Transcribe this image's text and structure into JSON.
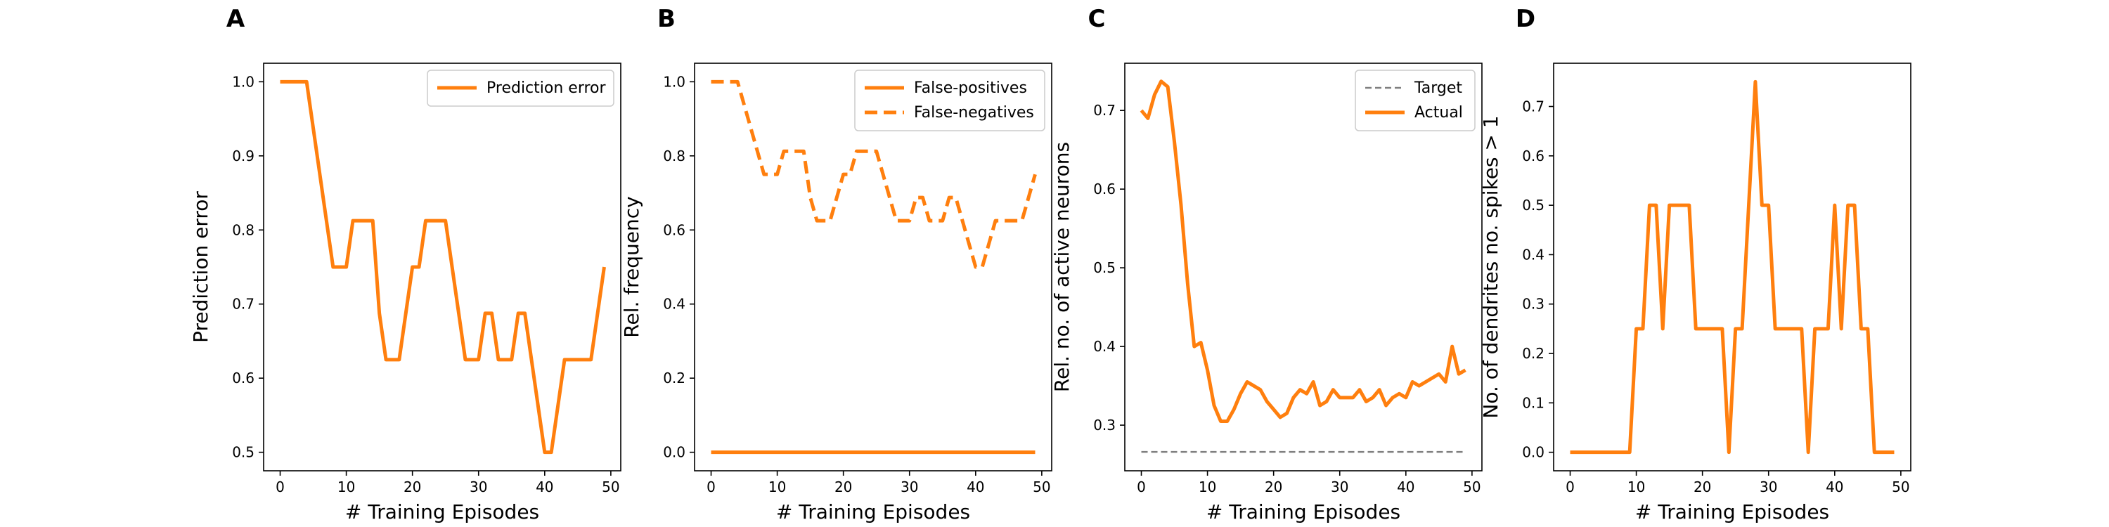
{
  "colors": {
    "series": "#ff7f0e",
    "target": "#7f7f7f",
    "axis": "#000000"
  },
  "chart_data": [
    {
      "type": "line",
      "panel_label": "A",
      "xlabel": "# Training Episodes",
      "ylabel": "Prediction error",
      "xlim": [
        -2.5,
        51.5
      ],
      "ylim": [
        0.475,
        1.025
      ],
      "xticks": [
        0,
        10,
        20,
        30,
        40,
        50
      ],
      "xtick_labels": [
        "0",
        "10",
        "20",
        "30",
        "40",
        "50"
      ],
      "yticks": [
        0.5,
        0.6,
        0.7,
        0.8,
        0.9,
        1.0
      ],
      "ytick_labels": [
        "0.5",
        "0.6",
        "0.7",
        "0.8",
        "0.9",
        "1.0"
      ],
      "grid": false,
      "legend_position": "top-right",
      "series": [
        {
          "name": "Prediction error",
          "style": "solid",
          "color": "#ff7f0e",
          "x": [
            0,
            1,
            2,
            3,
            4,
            5,
            6,
            7,
            8,
            9,
            10,
            11,
            12,
            13,
            14,
            15,
            16,
            17,
            18,
            19,
            20,
            21,
            22,
            23,
            24,
            25,
            26,
            27,
            28,
            29,
            30,
            31,
            32,
            33,
            34,
            35,
            36,
            37,
            38,
            39,
            40,
            41,
            42,
            43,
            44,
            45,
            46,
            47,
            48,
            49
          ],
          "y": [
            1.0,
            1.0,
            1.0,
            1.0,
            1.0,
            0.9375,
            0.875,
            0.8125,
            0.75,
            0.75,
            0.75,
            0.8125,
            0.8125,
            0.8125,
            0.8125,
            0.6875,
            0.625,
            0.625,
            0.625,
            0.6875,
            0.75,
            0.75,
            0.8125,
            0.8125,
            0.8125,
            0.8125,
            0.75,
            0.6875,
            0.625,
            0.625,
            0.625,
            0.6875,
            0.6875,
            0.625,
            0.625,
            0.625,
            0.6875,
            0.6875,
            0.625,
            0.5625,
            0.5,
            0.5,
            0.5625,
            0.625,
            0.625,
            0.625,
            0.625,
            0.625,
            0.6875,
            0.75
          ]
        }
      ]
    },
    {
      "type": "line",
      "panel_label": "B",
      "xlabel": "# Training Episodes",
      "ylabel": "Rel. frequency",
      "xlim": [
        -2.5,
        51.5
      ],
      "ylim": [
        -0.05,
        1.05
      ],
      "xticks": [
        0,
        10,
        20,
        30,
        40,
        50
      ],
      "xtick_labels": [
        "0",
        "10",
        "20",
        "30",
        "40",
        "50"
      ],
      "yticks": [
        0.0,
        0.2,
        0.4,
        0.6,
        0.8,
        1.0
      ],
      "ytick_labels": [
        "0.0",
        "0.2",
        "0.4",
        "0.6",
        "0.8",
        "1.0"
      ],
      "grid": false,
      "legend_position": "top-right",
      "series": [
        {
          "name": "False-positives",
          "style": "solid",
          "color": "#ff7f0e",
          "x": [
            0,
            1,
            2,
            3,
            4,
            5,
            6,
            7,
            8,
            9,
            10,
            11,
            12,
            13,
            14,
            15,
            16,
            17,
            18,
            19,
            20,
            21,
            22,
            23,
            24,
            25,
            26,
            27,
            28,
            29,
            30,
            31,
            32,
            33,
            34,
            35,
            36,
            37,
            38,
            39,
            40,
            41,
            42,
            43,
            44,
            45,
            46,
            47,
            48,
            49
          ],
          "y": [
            0,
            0,
            0,
            0,
            0,
            0,
            0,
            0,
            0,
            0,
            0,
            0,
            0,
            0,
            0,
            0,
            0,
            0,
            0,
            0,
            0,
            0,
            0,
            0,
            0,
            0,
            0,
            0,
            0,
            0,
            0,
            0,
            0,
            0,
            0,
            0,
            0,
            0,
            0,
            0,
            0,
            0,
            0,
            0,
            0,
            0,
            0,
            0,
            0,
            0
          ]
        },
        {
          "name": "False-negatives",
          "style": "dashed",
          "color": "#ff7f0e",
          "x": [
            0,
            1,
            2,
            3,
            4,
            5,
            6,
            7,
            8,
            9,
            10,
            11,
            12,
            13,
            14,
            15,
            16,
            17,
            18,
            19,
            20,
            21,
            22,
            23,
            24,
            25,
            26,
            27,
            28,
            29,
            30,
            31,
            32,
            33,
            34,
            35,
            36,
            37,
            38,
            39,
            40,
            41,
            42,
            43,
            44,
            45,
            46,
            47,
            48,
            49
          ],
          "y": [
            1.0,
            1.0,
            1.0,
            1.0,
            1.0,
            0.9375,
            0.875,
            0.8125,
            0.75,
            0.75,
            0.75,
            0.8125,
            0.8125,
            0.8125,
            0.8125,
            0.6875,
            0.625,
            0.625,
            0.625,
            0.6875,
            0.75,
            0.75,
            0.8125,
            0.8125,
            0.8125,
            0.8125,
            0.75,
            0.6875,
            0.625,
            0.625,
            0.625,
            0.6875,
            0.6875,
            0.625,
            0.625,
            0.625,
            0.6875,
            0.6875,
            0.625,
            0.5625,
            0.5,
            0.5,
            0.5625,
            0.625,
            0.625,
            0.625,
            0.625,
            0.625,
            0.6875,
            0.75
          ]
        }
      ]
    },
    {
      "type": "line",
      "panel_label": "C",
      "xlabel": "# Training Episodes",
      "ylabel": "Rel. no. of active neurons",
      "xlim": [
        -2.5,
        51.5
      ],
      "ylim": [
        0.242,
        0.76
      ],
      "xticks": [
        0,
        10,
        20,
        30,
        40,
        50
      ],
      "xtick_labels": [
        "0",
        "10",
        "20",
        "30",
        "40",
        "50"
      ],
      "yticks": [
        0.3,
        0.4,
        0.5,
        0.6,
        0.7
      ],
      "ytick_labels": [
        "0.3",
        "0.4",
        "0.5",
        "0.6",
        "0.7"
      ],
      "grid": false,
      "legend_position": "top-right",
      "series": [
        {
          "name": "Target",
          "style": "dashed",
          "color": "#7f7f7f",
          "x": [
            0,
            49
          ],
          "y": [
            0.266,
            0.266
          ]
        },
        {
          "name": "Actual",
          "style": "solid",
          "color": "#ff7f0e",
          "x": [
            0,
            1,
            2,
            3,
            4,
            5,
            6,
            7,
            8,
            9,
            10,
            11,
            12,
            13,
            14,
            15,
            16,
            17,
            18,
            19,
            20,
            21,
            22,
            23,
            24,
            25,
            26,
            27,
            28,
            29,
            30,
            31,
            32,
            33,
            34,
            35,
            36,
            37,
            38,
            39,
            40,
            41,
            42,
            43,
            44,
            45,
            46,
            47,
            48,
            49
          ],
          "y": [
            0.7,
            0.69,
            0.72,
            0.737,
            0.73,
            0.66,
            0.58,
            0.48,
            0.4,
            0.405,
            0.37,
            0.325,
            0.305,
            0.305,
            0.32,
            0.34,
            0.355,
            0.35,
            0.345,
            0.33,
            0.32,
            0.31,
            0.315,
            0.335,
            0.345,
            0.34,
            0.355,
            0.325,
            0.33,
            0.345,
            0.335,
            0.335,
            0.335,
            0.345,
            0.33,
            0.335,
            0.345,
            0.325,
            0.335,
            0.34,
            0.335,
            0.355,
            0.35,
            0.355,
            0.36,
            0.365,
            0.355,
            0.4,
            0.365,
            0.37
          ]
        }
      ]
    },
    {
      "type": "line",
      "panel_label": "D",
      "xlabel": "# Training Episodes",
      "ylabel": "No. of dendrites no. spikes > 1",
      "xlim": [
        -2.5,
        51.5
      ],
      "ylim": [
        -0.0375,
        0.7875
      ],
      "xticks": [
        0,
        10,
        20,
        30,
        40,
        50
      ],
      "xtick_labels": [
        "0",
        "10",
        "20",
        "30",
        "40",
        "50"
      ],
      "yticks": [
        0.0,
        0.1,
        0.2,
        0.3,
        0.4,
        0.5,
        0.6,
        0.7
      ],
      "ytick_labels": [
        "0.0",
        "0.1",
        "0.2",
        "0.3",
        "0.4",
        "0.5",
        "0.6",
        "0.7"
      ],
      "grid": false,
      "legend_position": "none",
      "series": [
        {
          "style": "solid",
          "color": "#ff7f0e",
          "x": [
            0,
            1,
            2,
            3,
            4,
            5,
            6,
            7,
            8,
            9,
            10,
            11,
            12,
            13,
            14,
            15,
            16,
            17,
            18,
            19,
            20,
            21,
            22,
            23,
            24,
            25,
            26,
            27,
            28,
            29,
            30,
            31,
            32,
            33,
            34,
            35,
            36,
            37,
            38,
            39,
            40,
            41,
            42,
            43,
            44,
            45,
            46,
            47,
            48,
            49
          ],
          "y": [
            0,
            0,
            0,
            0,
            0,
            0,
            0,
            0,
            0,
            0,
            0.25,
            0.25,
            0.5,
            0.5,
            0.25,
            0.5,
            0.5,
            0.5,
            0.5,
            0.25,
            0.25,
            0.25,
            0.25,
            0.25,
            0,
            0.25,
            0.25,
            0.5,
            0.75,
            0.5,
            0.5,
            0.25,
            0.25,
            0.25,
            0.25,
            0.25,
            0,
            0.25,
            0.25,
            0.25,
            0.5,
            0.25,
            0.5,
            0.5,
            0.25,
            0.25,
            0,
            0,
            0,
            0
          ]
        }
      ]
    }
  ]
}
